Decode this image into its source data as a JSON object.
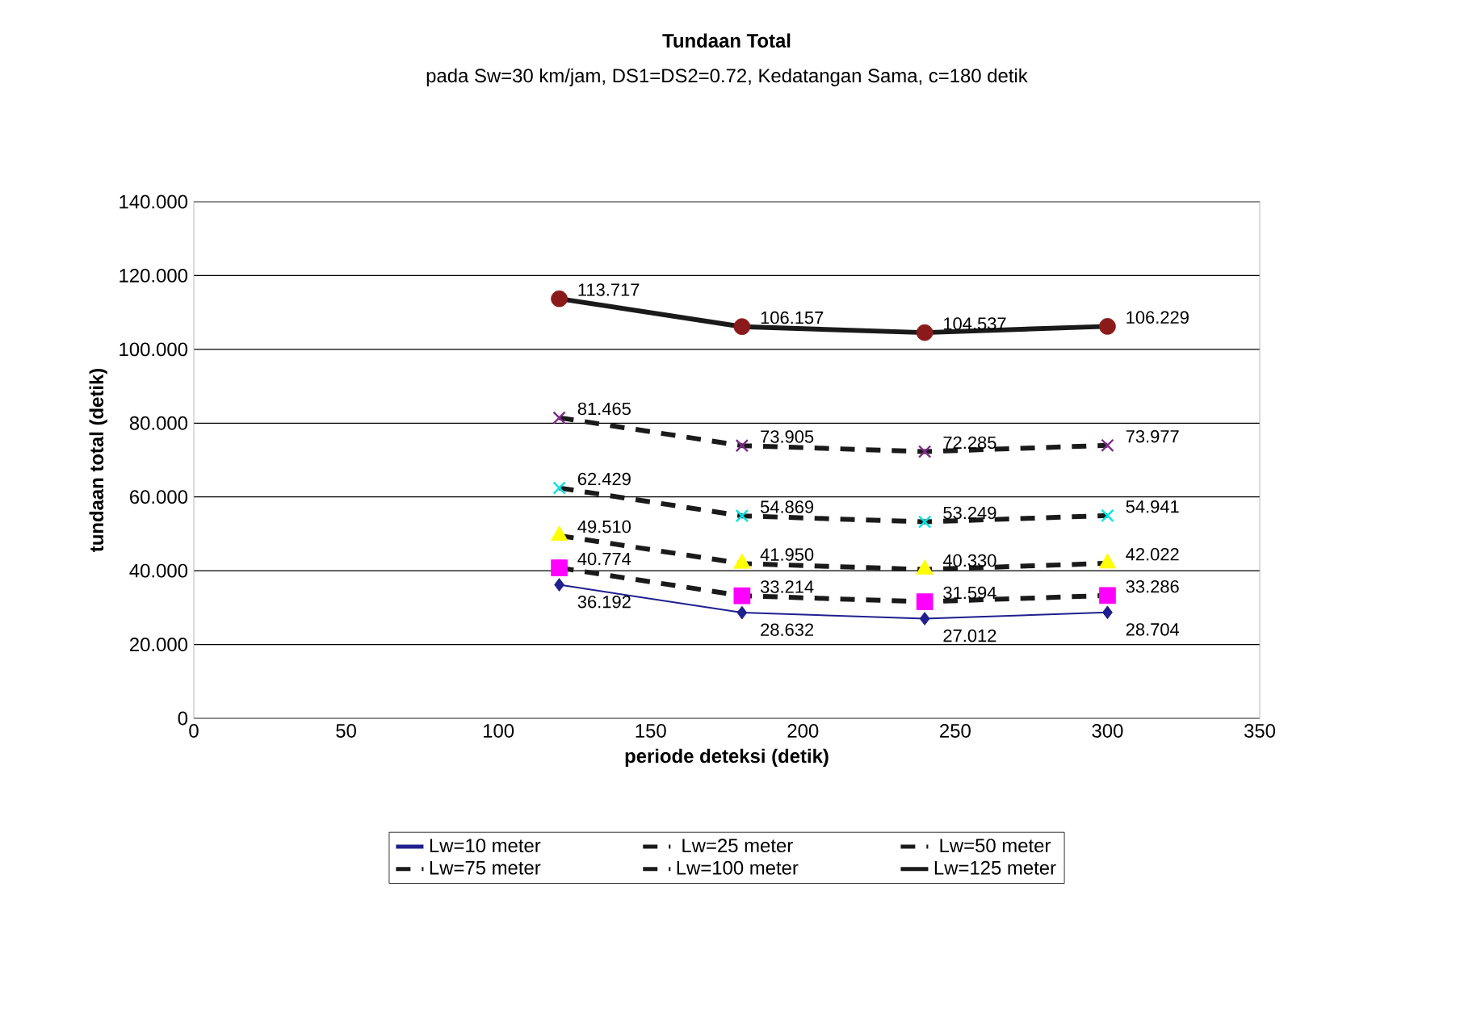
{
  "chart_data": {
    "type": "line",
    "title": "Tundaan Total",
    "subtitle": "pada Sw=30 km/jam, DS1=DS2=0.72, Kedatangan Sama, c=180 detik",
    "xlabel": "periode deteksi (detik)",
    "ylabel": "tundaan total (detik)",
    "x": [
      120,
      180,
      240,
      300
    ],
    "xlim": [
      0,
      350
    ],
    "xticks": [
      0,
      50,
      100,
      150,
      200,
      250,
      300,
      350
    ],
    "ylim": [
      0,
      140
    ],
    "yticks": [
      0,
      {
        "value": 20,
        "label": "20.000"
      },
      {
        "value": 40,
        "label": "40.000"
      },
      {
        "value": 60,
        "label": "60.000"
      },
      {
        "value": 80,
        "label": "80.000"
      },
      {
        "value": 100,
        "label": "100.000"
      },
      {
        "value": 120,
        "label": "120.000"
      },
      {
        "value": 140,
        "label": "140.000"
      }
    ],
    "grid": "y",
    "legend": "bottom",
    "series": [
      {
        "name": "Lw=10 meter",
        "color": "#1f1f8f",
        "colors": [
          "#1f1f8f",
          "#1f1f8f",
          "#1f1f8f",
          "#1f1f8f"
        ],
        "marker": "diamond",
        "line_style": "solid",
        "values": [
          36.192,
          28.632,
          27.012,
          28.704
        ],
        "value_labels": [
          "36.192",
          "28.632",
          "27.012",
          "28.704"
        ]
      },
      {
        "name": "Lw=25 meter",
        "color": "#1a1a1a",
        "colors": [
          "#ff00ff",
          "#ff00ff",
          "#ff00ff",
          "#ff00ff"
        ],
        "marker": "square",
        "line_style": "dashed",
        "values": [
          40.774,
          33.214,
          31.594,
          33.286
        ],
        "value_labels": [
          "40.774",
          "33.214",
          "31.594",
          "33.286"
        ]
      },
      {
        "name": "Lw=50 meter",
        "color": "#1a1a1a",
        "colors": [
          "#ffff00",
          "#ffff00",
          "#ffff00",
          "#ffff00"
        ],
        "marker": "triangle",
        "line_style": "dashed",
        "values": [
          49.51,
          41.95,
          40.33,
          42.022
        ],
        "value_labels": [
          "49.510",
          "41.950",
          "40.330",
          "42.022"
        ]
      },
      {
        "name": "Lw=75 meter",
        "color": "#1a1a1a",
        "colors": [
          "#00e5e5",
          "#00e5e5",
          "#00e5e5",
          "#00e5e5"
        ],
        "marker": "cross",
        "line_style": "dashed",
        "values": [
          62.429,
          54.869,
          53.249,
          54.941
        ],
        "value_labels": [
          "62.429",
          "54.869",
          "53.249",
          "54.941"
        ]
      },
      {
        "name": "Lw=100 meter",
        "color": "#1a1a1a",
        "colors": [
          "#7f2a8a",
          "#7f2a8a",
          "#7f2a8a",
          "#7f2a8a"
        ],
        "marker": "cross",
        "line_style": "dashed",
        "values": [
          81.465,
          73.905,
          72.285,
          73.977
        ],
        "value_labels": [
          "81.465",
          "73.905",
          "72.285",
          "73.977"
        ]
      },
      {
        "name": "Lw=125 meter",
        "color": "#1a1a1a",
        "colors": [
          "#8b1a1a",
          "#8b1a1a",
          "#8b1a1a",
          "#8b1a1a"
        ],
        "marker": "circle",
        "line_style": "solid",
        "values": [
          113.717,
          106.157,
          104.537,
          106.229
        ],
        "value_labels": [
          "113.717",
          "106.157",
          "104.537",
          "106.229"
        ]
      }
    ]
  }
}
